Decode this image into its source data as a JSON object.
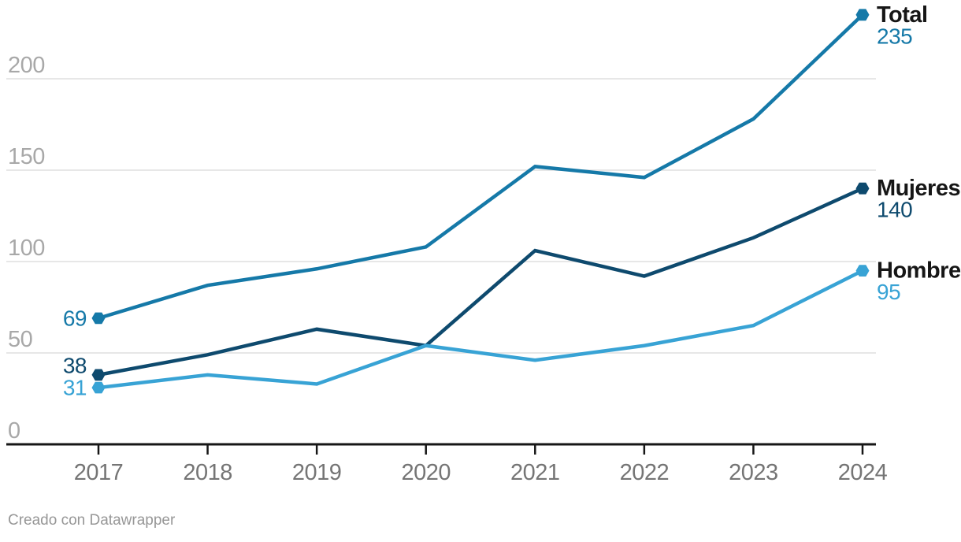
{
  "chart_data": {
    "type": "line",
    "x": [
      "2017",
      "2018",
      "2019",
      "2020",
      "2021",
      "2022",
      "2023",
      "2024"
    ],
    "series": [
      {
        "name": "Total",
        "color": "#1579a8",
        "values": [
          69,
          87,
          96,
          108,
          152,
          146,
          178,
          235
        ],
        "start_label": "69",
        "end_label": "235"
      },
      {
        "name": "Mujeres",
        "color": "#0e4a6e",
        "values": [
          38,
          49,
          63,
          54,
          106,
          92,
          113,
          140
        ],
        "start_label": "38",
        "end_label": "140"
      },
      {
        "name": "Hombres",
        "color": "#38a3d5",
        "values": [
          31,
          38,
          33,
          54,
          46,
          54,
          65,
          95
        ],
        "start_label": "31",
        "end_label": "95"
      }
    ],
    "yticks": [
      0,
      50,
      100,
      150,
      200
    ],
    "ylim": [
      0,
      235
    ],
    "grid": "horizontal",
    "legend_position": "right-end-of-lines",
    "marker_shape": "hexagon",
    "title": "",
    "xlabel": "",
    "ylabel": ""
  },
  "footer": {
    "credit": "Creado con Datawrapper"
  },
  "colors": {
    "background": "#ffffff",
    "axis_line": "#161616",
    "gridline": "#e7e7e7",
    "y_tick_label": "#a8a8a8",
    "x_tick_label": "#757575",
    "legend_name": "#161616",
    "footer_text": "#979797"
  }
}
